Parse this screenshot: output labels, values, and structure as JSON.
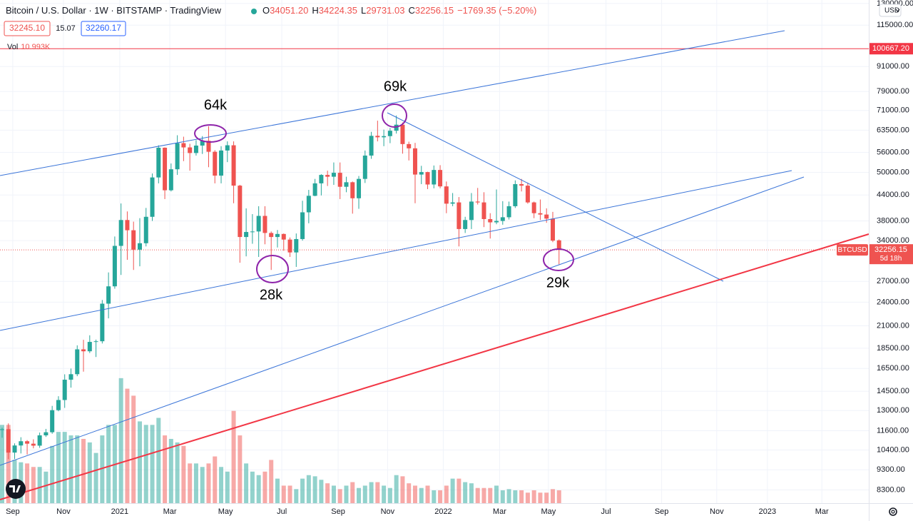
{
  "chart_data": {
    "type": "candlestick",
    "title": "Bitcoin / U.S. Dollar · 1W · BITSTAMP · TradingView",
    "ohlc_legend": [
      {
        "key": "O",
        "value": "34051.20"
      },
      {
        "key": "H",
        "value": "34224.35"
      },
      {
        "key": "L",
        "value": "29731.03"
      },
      {
        "key": "C",
        "value": "32256.15"
      }
    ],
    "change_label": "−1769.35 (−5.20%)",
    "bid_label": "32245.10",
    "spread_label": "15.07",
    "ask_label": "32260.17",
    "vol_label": "Vol",
    "vol_value_label": "10.993K",
    "currency": "USD",
    "log_scale": true,
    "grid": true,
    "up_color": "#26a69a",
    "down_color": "#ef5350",
    "vol_up_color": "rgba(38,166,154,0.5)",
    "vol_down_color": "rgba(239,83,80,0.5)",
    "categories": [
      null,
      null,
      null,
      null,
      null,
      null,
      null,
      null,
      null,
      null,
      null,
      null,
      null,
      null,
      null,
      null,
      null,
      null,
      null,
      null,
      null,
      null,
      null,
      null,
      null,
      null,
      null,
      null,
      null,
      null,
      null,
      null,
      null,
      null,
      null,
      null,
      null,
      null,
      null,
      null,
      null,
      null,
      null,
      null,
      null,
      null,
      null,
      null,
      null,
      null,
      null,
      null,
      null,
      null,
      null,
      null,
      null,
      null,
      null,
      null,
      null,
      null,
      null,
      null,
      null,
      null,
      null,
      null,
      null,
      null,
      null,
      null,
      null,
      null,
      null,
      null,
      null,
      null,
      null,
      null,
      null,
      null,
      null,
      null,
      null,
      null,
      null,
      null,
      null,
      null
    ],
    "open": [
      11650,
      11700,
      10250,
      10670,
      10930,
      10780,
      10660,
      11300,
      11500,
      13030,
      13800,
      15480,
      15970,
      18380,
      18180,
      19170,
      19240,
      23800,
      26250,
      33000,
      38200,
      36050,
      32300,
      33500,
      38900,
      48600,
      57500,
      45200,
      50900,
      59000,
      57600,
      55800,
      58200,
      59800,
      56200,
      49100,
      56600,
      58300,
      46400,
      34700,
      35700,
      35800,
      39100,
      35500,
      34700,
      35300,
      34200,
      31800,
      34300,
      39900,
      43800,
      47000,
      49300,
      48800,
      49900,
      46100,
      47300,
      43200,
      48200,
      55000,
      61500,
      61000,
      61400,
      63300,
      65500,
      58700,
      57300,
      49400,
      50100,
      46700,
      50700,
      46200,
      41900,
      42200,
      36300,
      38200,
      42400,
      42200,
      38400,
      37700,
      38000,
      38800,
      41300,
      46800,
      46400,
      42200,
      39700,
      39400,
      38500,
      34051.2
    ],
    "high": [
      11800,
      12090,
      10800,
      11180,
      11000,
      11050,
      11480,
      11720,
      13350,
      14100,
      15960,
      16490,
      18800,
      19400,
      19900,
      19420,
      24300,
      28400,
      34800,
      41950,
      40100,
      37850,
      38600,
      40900,
      49700,
      58300,
      57600,
      52600,
      61700,
      61200,
      58800,
      60000,
      61400,
      64900,
      56700,
      58000,
      59600,
      59600,
      46600,
      40800,
      39500,
      41300,
      41300,
      35800,
      36100,
      35400,
      34600,
      35400,
      42600,
      45300,
      48200,
      49500,
      50500,
      52900,
      52900,
      48800,
      47500,
      49000,
      56600,
      62900,
      67000,
      63700,
      64300,
      69000,
      66300,
      59500,
      59100,
      51900,
      50200,
      52000,
      52100,
      47500,
      44500,
      43500,
      38900,
      44500,
      45800,
      44700,
      39700,
      45400,
      42500,
      42400,
      47800,
      48200,
      47200,
      42400,
      42900,
      40800,
      40000,
      34224.35
    ],
    "low": [
      11150,
      9880,
      9880,
      10200,
      10140,
      10500,
      10530,
      11200,
      11400,
      12950,
      13200,
      14800,
      15790,
      16200,
      18000,
      17600,
      19000,
      21900,
      25900,
      28000,
      30500,
      28800,
      29400,
      32900,
      38000,
      47000,
      43000,
      44900,
      49300,
      53300,
      50500,
      55000,
      55500,
      51500,
      47000,
      47000,
      53000,
      42000,
      30000,
      31100,
      33400,
      31000,
      33300,
      28800,
      32700,
      32100,
      31000,
      29300,
      34000,
      37500,
      43700,
      43900,
      46300,
      46600,
      43000,
      44700,
      39600,
      40700,
      47100,
      54000,
      59600,
      58000,
      59000,
      62300,
      55600,
      53500,
      42000,
      46800,
      45500,
      45700,
      45700,
      39700,
      41300,
      32900,
      35500,
      36300,
      41700,
      36700,
      34400,
      37300,
      37200,
      38300,
      40900,
      44900,
      41900,
      38600,
      38200,
      37600,
      33700,
      29731.03
    ],
    "close": [
      11700,
      10250,
      10670,
      10930,
      10780,
      10660,
      11300,
      11500,
      13030,
      13800,
      15480,
      15970,
      18380,
      18180,
      19170,
      19240,
      23800,
      26250,
      33000,
      38200,
      36050,
      32300,
      33500,
      38900,
      48600,
      57500,
      45200,
      50900,
      59000,
      57600,
      55800,
      58200,
      59800,
      56200,
      49100,
      56600,
      58300,
      46400,
      34700,
      35700,
      35800,
      39100,
      35500,
      34700,
      35300,
      34200,
      31800,
      34300,
      39900,
      43800,
      47000,
      49300,
      48800,
      49900,
      46100,
      47300,
      43200,
      48200,
      55000,
      61500,
      61000,
      61400,
      63300,
      65500,
      58700,
      57300,
      49400,
      50100,
      46700,
      50700,
      46200,
      41900,
      42200,
      36300,
      38200,
      42400,
      42200,
      38400,
      37700,
      38000,
      38800,
      41300,
      46800,
      46400,
      42200,
      39700,
      39400,
      38500,
      34000,
      32256.15
    ],
    "volume": [
      67,
      67,
      37,
      35,
      34,
      31,
      31,
      27,
      49,
      61,
      61,
      58,
      58,
      55,
      52,
      43,
      58,
      67,
      67,
      107,
      98,
      92,
      70,
      67,
      67,
      73,
      58,
      55,
      52,
      49,
      34,
      34,
      31,
      34,
      40,
      31,
      27,
      79,
      58,
      34,
      27,
      24,
      27,
      37,
      21,
      15,
      15,
      12,
      21,
      24,
      23,
      20,
      17,
      15,
      12,
      15,
      18,
      13,
      15,
      18,
      18,
      15,
      13,
      24,
      23,
      17,
      15,
      13,
      15,
      11,
      11,
      15,
      21,
      21,
      18,
      17,
      13,
      13,
      13,
      15,
      11,
      12,
      11,
      11,
      9,
      11,
      9,
      9,
      12,
      10.993
    ],
    "vlim": [
      0,
      190
    ],
    "ylim": [
      7700,
      132600
    ],
    "yticks": [
      {
        "value": 130000,
        "label": "130000.00"
      },
      {
        "value": 115000,
        "label": "115000.00"
      },
      {
        "value": 91000,
        "label": "91000.00"
      },
      {
        "value": 79000,
        "label": "79000.00"
      },
      {
        "value": 71000,
        "label": "71000.00"
      },
      {
        "value": 63500,
        "label": "63500.00"
      },
      {
        "value": 56000,
        "label": "56000.00"
      },
      {
        "value": 50000,
        "label": "50000.00"
      },
      {
        "value": 44000,
        "label": "44000.00"
      },
      {
        "value": 38000,
        "label": "38000.00"
      },
      {
        "value": 34000,
        "label": "34000.00"
      },
      {
        "value": 27000,
        "label": "27000.00"
      },
      {
        "value": 24000,
        "label": "24000.00"
      },
      {
        "value": 21000,
        "label": "21000.00"
      },
      {
        "value": 18500,
        "label": "18500.00"
      },
      {
        "value": 16500,
        "label": "16500.00"
      },
      {
        "value": 14500,
        "label": "14500.00"
      },
      {
        "value": 13000,
        "label": "13000.00"
      },
      {
        "value": 11600,
        "label": "11600.00"
      },
      {
        "value": 10400,
        "label": "10400.00"
      },
      {
        "value": 9300,
        "label": "9300.00"
      },
      {
        "value": 8300,
        "label": "8300.00"
      }
    ],
    "xlim": [
      -0.34,
      138.5
    ],
    "xticks": [
      {
        "value": 1.7,
        "label": "Sep"
      },
      {
        "value": 9.8,
        "label": "Nov"
      },
      {
        "value": 18.8,
        "label": "2021"
      },
      {
        "value": 26.8,
        "label": "Mar"
      },
      {
        "value": 35.7,
        "label": "May"
      },
      {
        "value": 44.7,
        "label": "Jul"
      },
      {
        "value": 53.7,
        "label": "Sep"
      },
      {
        "value": 61.6,
        "label": "Nov"
      },
      {
        "value": 70.5,
        "label": "2022"
      },
      {
        "value": 79.5,
        "label": "Mar"
      },
      {
        "value": 87.3,
        "label": "May"
      },
      {
        "value": 96.5,
        "label": "Jul"
      },
      {
        "value": 105.4,
        "label": "Sep"
      },
      {
        "value": 114.2,
        "label": "Nov"
      },
      {
        "value": 122.3,
        "label": "2023"
      },
      {
        "value": 131,
        "label": "Mar"
      }
    ],
    "hline": {
      "value": 100667.2,
      "label": "100667.20",
      "color": "#f23645"
    },
    "price_line": {
      "symbol": "BTCUSD",
      "label": "32256.15",
      "countdown": "5d 18h"
    },
    "annotations": [
      "64k",
      "69k",
      "28k",
      "29k"
    ]
  }
}
